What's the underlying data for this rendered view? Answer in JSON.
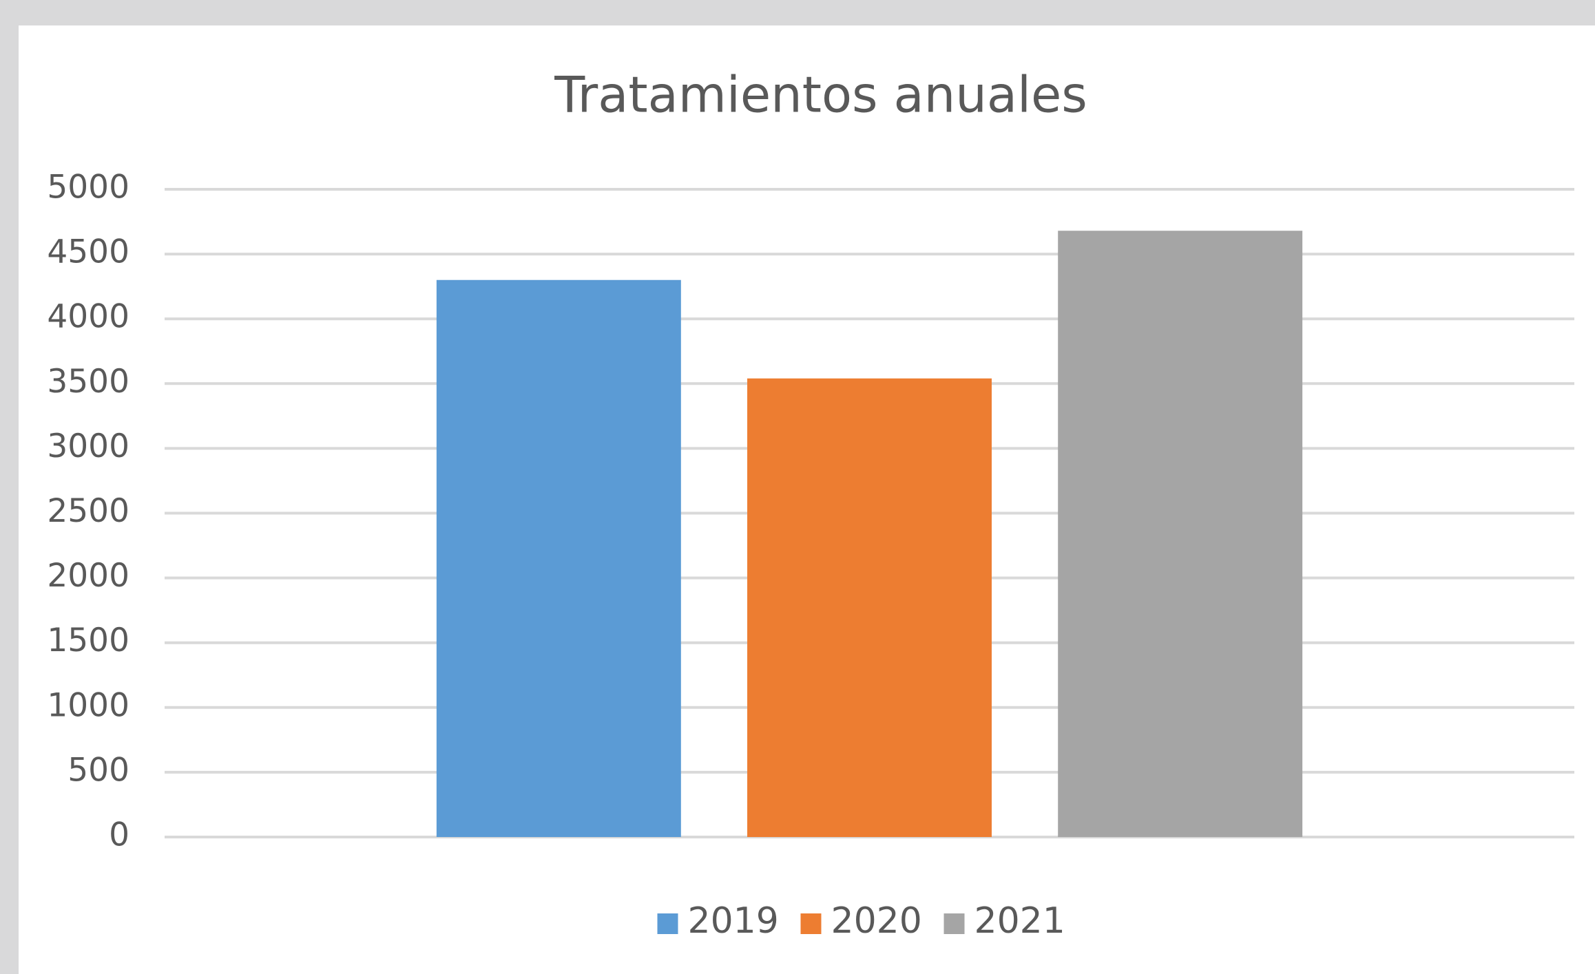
{
  "chart_data": {
    "type": "bar",
    "title": "Tratamientos anuales",
    "categories": [
      null
    ],
    "series": [
      {
        "name": "2019",
        "color": "#5b9bd5",
        "values": [
          4300
        ]
      },
      {
        "name": "2020",
        "color": "#ed7d31",
        "values": [
          3540
        ]
      },
      {
        "name": "2021",
        "color": "#a5a5a5",
        "values": [
          4680
        ]
      }
    ],
    "ylim": [
      0,
      5000
    ],
    "yticks": [
      0,
      500,
      1000,
      1500,
      2000,
      2500,
      3000,
      3500,
      4000,
      4500,
      5000
    ],
    "grid": true,
    "legend": "bottom"
  }
}
